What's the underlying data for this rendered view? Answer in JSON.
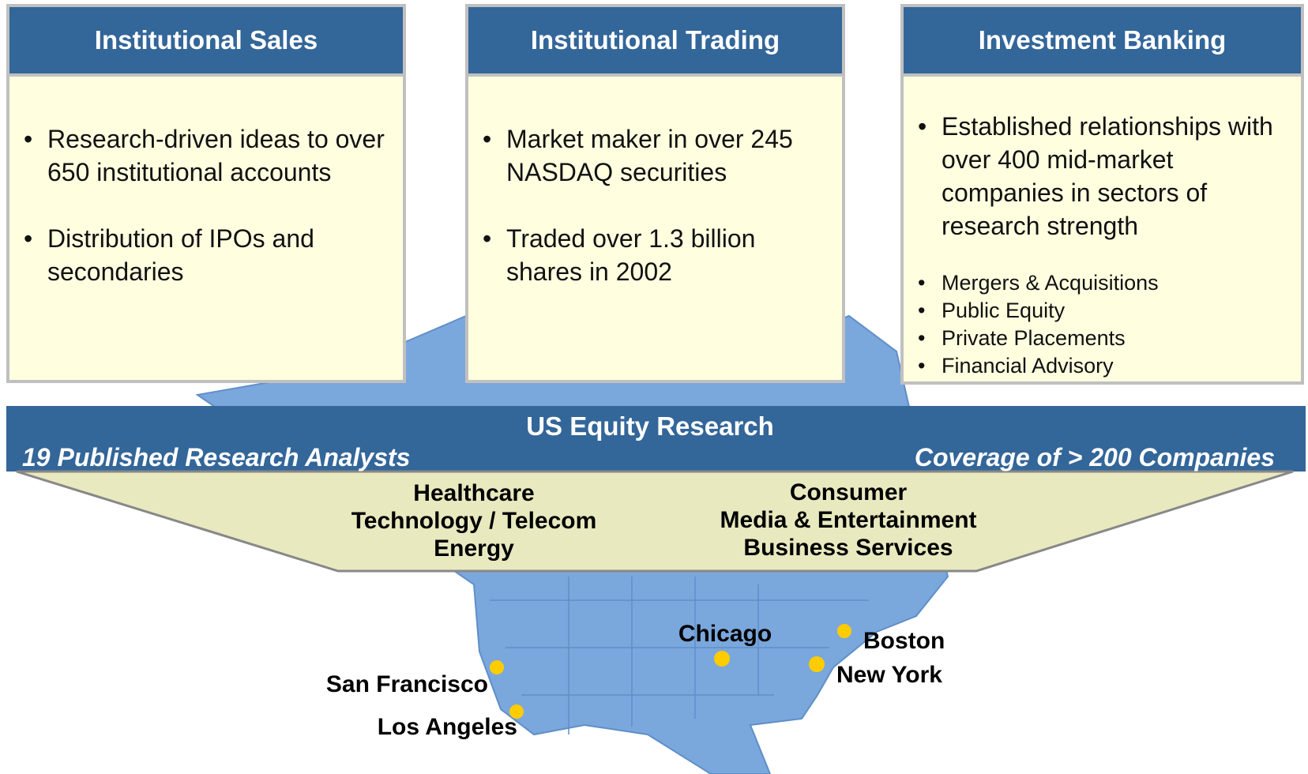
{
  "columns": [
    {
      "title": "Institutional Sales",
      "bullets": [
        "Research-driven ideas to over 650 institutional accounts",
        "Distribution of IPOs and secondaries"
      ]
    },
    {
      "title": "Institutional Trading",
      "bullets": [
        "Market maker in over 245 NASDAQ securities",
        "Traded over 1.3 billion shares in 2002"
      ]
    },
    {
      "title": "Investment Banking",
      "bullets": [
        "Established relationships with over 400 mid-market companies in sectors of research strength"
      ],
      "sub_bullets": [
        "Mergers & Acquisitions",
        "Public Equity",
        "Private Placements",
        "Financial Advisory"
      ]
    }
  ],
  "research": {
    "title": "US Equity Research",
    "left": "19 Published Research Analysts",
    "right": "Coverage of > 200 Companies",
    "sectors_left": [
      "Healthcare",
      "Technology / Telecom",
      "Energy"
    ],
    "sectors_right": [
      "Consumer",
      "Media & Entertainment",
      "Business Services"
    ]
  },
  "cities": [
    "San Francisco",
    "Los Angeles",
    "Chicago",
    "Boston",
    "New York"
  ]
}
